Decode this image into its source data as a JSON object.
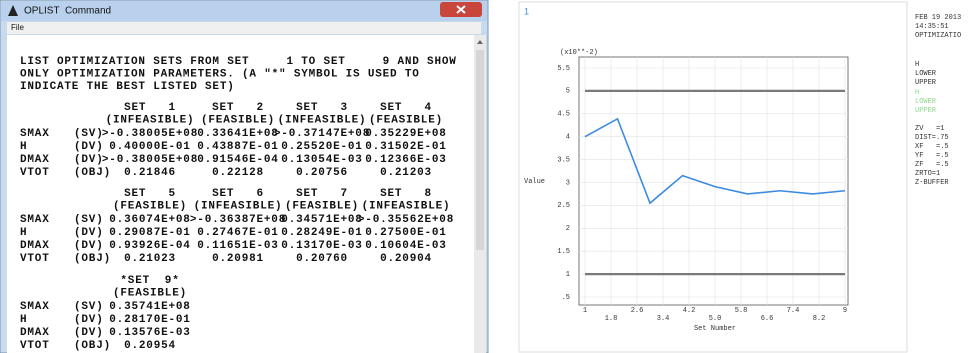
{
  "window": {
    "title": "OPLIST  Command",
    "menu": [
      "File"
    ],
    "intro": [
      "LIST OPTIMIZATION SETS FROM SET     1 TO SET     9 AND SHOW",
      "ONLY OPTIMIZATION PARAMETERS. (A \"*\" SYMBOL IS USED TO",
      "INDICATE THE BEST LISTED SET)"
    ],
    "tables": [
      {
        "headers": [
          [
            "SET   1",
            "(INFEASIBLE)"
          ],
          [
            "SET   2",
            "(FEASIBLE)"
          ],
          [
            "SET   3",
            "(INFEASIBLE)"
          ],
          [
            "SET   4",
            "(FEASIBLE)"
          ]
        ],
        "rows": [
          [
            "SMAX",
            "(SV)",
            ">-0.38005E+08",
            "0.33641E+08",
            ">-0.37147E+08",
            "0.35229E+08"
          ],
          [
            "H",
            "(DV)",
            "0.40000E-01",
            "0.43887E-01",
            "0.25520E-01",
            "0.31502E-01"
          ],
          [
            "DMAX",
            "(DV)",
            ">-0.38005E+08",
            "0.91546E-04",
            "0.13054E-03",
            "0.12366E-03"
          ],
          [
            "VTOT",
            "(OBJ)",
            "0.21846",
            "0.22128",
            "0.20756",
            "0.21203"
          ]
        ]
      },
      {
        "headers": [
          [
            "SET   5",
            "(FEASIBLE)"
          ],
          [
            "SET   6",
            "(INFEASIBLE)"
          ],
          [
            "SET   7",
            "(FEASIBLE)"
          ],
          [
            "SET   8",
            "(INFEASIBLE)"
          ]
        ],
        "rows": [
          [
            "SMAX",
            "(SV)",
            "0.36074E+08",
            ">-0.36387E+08",
            "0.34571E+08",
            ">-0.35562E+08"
          ],
          [
            "H",
            "(DV)",
            "0.29087E-01",
            "0.27467E-01",
            "0.28249E-01",
            "0.27500E-01"
          ],
          [
            "DMAX",
            "(DV)",
            "0.93926E-04",
            "0.11651E-03",
            "0.13170E-03",
            "0.10604E-03"
          ],
          [
            "VTOT",
            "(OBJ)",
            "0.21023",
            "0.20981",
            "0.20760",
            "0.20904"
          ]
        ]
      },
      {
        "headers": [
          [
            "*SET  9*",
            "(FEASIBLE)"
          ]
        ],
        "rows": [
          [
            "SMAX",
            "(SV)",
            "0.35741E+08"
          ],
          [
            "H",
            "(DV)",
            "0.28170E-01"
          ],
          [
            "DMAX",
            "(DV)",
            "0.13576E-03"
          ],
          [
            "VTOT",
            "(OBJ)",
            "0.20954"
          ]
        ]
      }
    ]
  },
  "chart_data": {
    "type": "line",
    "corner_label": "1",
    "scale_label": "(x10**-2)",
    "ylabel": "Value",
    "xlabel": "Set Number",
    "x": [
      1,
      2,
      3,
      4,
      5,
      6,
      7,
      8,
      9
    ],
    "series": [
      {
        "name": "H",
        "color": "#3d8be0",
        "values": [
          4.0,
          4.39,
          2.55,
          3.15,
          2.91,
          2.75,
          2.82,
          2.75,
          2.82
        ]
      },
      {
        "name": "LOWER",
        "color": "#7a7a7a",
        "values": [
          1,
          1,
          1,
          1,
          1,
          1,
          1,
          1,
          1
        ]
      },
      {
        "name": "UPPER",
        "color": "#7a7a7a",
        "values": [
          5,
          5,
          5,
          5,
          5,
          5,
          5,
          5,
          5
        ]
      }
    ],
    "xlim": [
      1,
      9
    ],
    "xticks": [
      1,
      1.8,
      2.6,
      3.4,
      4.2,
      {
        "value": 5,
        "label": "5.0"
      },
      5.8,
      6.6,
      7.4,
      8.2,
      9
    ],
    "ylim": [
      0.5,
      5.5
    ],
    "yticks": [
      {
        "value": 0.5,
        "label": ".5"
      },
      1,
      1.5,
      2,
      2.5,
      3,
      3.5,
      4,
      4.5,
      5,
      5.5
    ],
    "grid": true,
    "legend_color": "#8fd88f"
  },
  "sidebar": {
    "lines": [
      "FEB 19 2013",
      "14:35:51",
      "OPTIMIZATIO"
    ],
    "dims": [
      "H",
      "LOWER",
      "UPPER"
    ],
    "settings": [
      "ZV   =1",
      "DIST=.75",
      "XF   =.5",
      "YF   =.5",
      "ZF   =.5",
      "ZRTO=1",
      "Z-BUFFER"
    ]
  }
}
